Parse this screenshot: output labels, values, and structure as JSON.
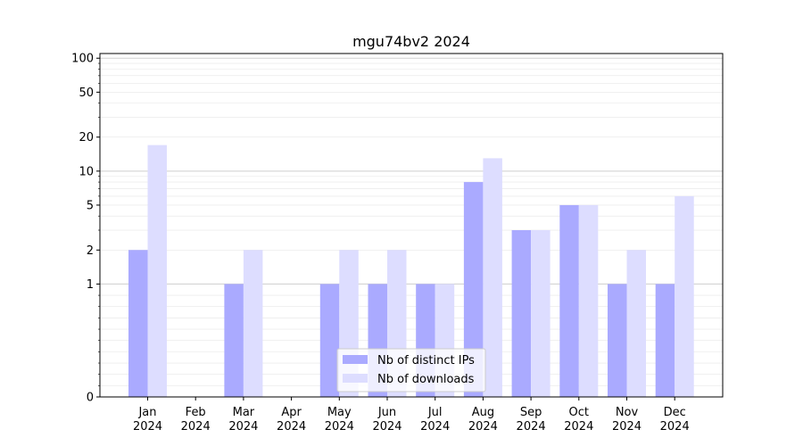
{
  "chart_data": {
    "type": "bar",
    "title": "mgu74bv2 2024",
    "xlabel": "",
    "ylabel": "",
    "yscale": "symlog",
    "ylim": [
      0,
      110
    ],
    "y_ticks": [
      0,
      1,
      2,
      5,
      10,
      20,
      50,
      100
    ],
    "categories": [
      [
        "Jan",
        "2024"
      ],
      [
        "Feb",
        "2024"
      ],
      [
        "Mar",
        "2024"
      ],
      [
        "Apr",
        "2024"
      ],
      [
        "May",
        "2024"
      ],
      [
        "Jun",
        "2024"
      ],
      [
        "Jul",
        "2024"
      ],
      [
        "Aug",
        "2024"
      ],
      [
        "Sep",
        "2024"
      ],
      [
        "Oct",
        "2024"
      ],
      [
        "Nov",
        "2024"
      ],
      [
        "Dec",
        "2024"
      ]
    ],
    "series": [
      {
        "name": "Nb of distinct IPs",
        "color": "#aaaaff",
        "values": [
          2,
          0,
          1,
          0,
          1,
          1,
          1,
          8,
          3,
          5,
          1,
          1
        ]
      },
      {
        "name": "Nb of downloads",
        "color": "#ddddff",
        "values": [
          17,
          0,
          2,
          0,
          2,
          2,
          1,
          13,
          3,
          5,
          2,
          6
        ]
      }
    ],
    "grid": true,
    "legend": "lower-center"
  }
}
